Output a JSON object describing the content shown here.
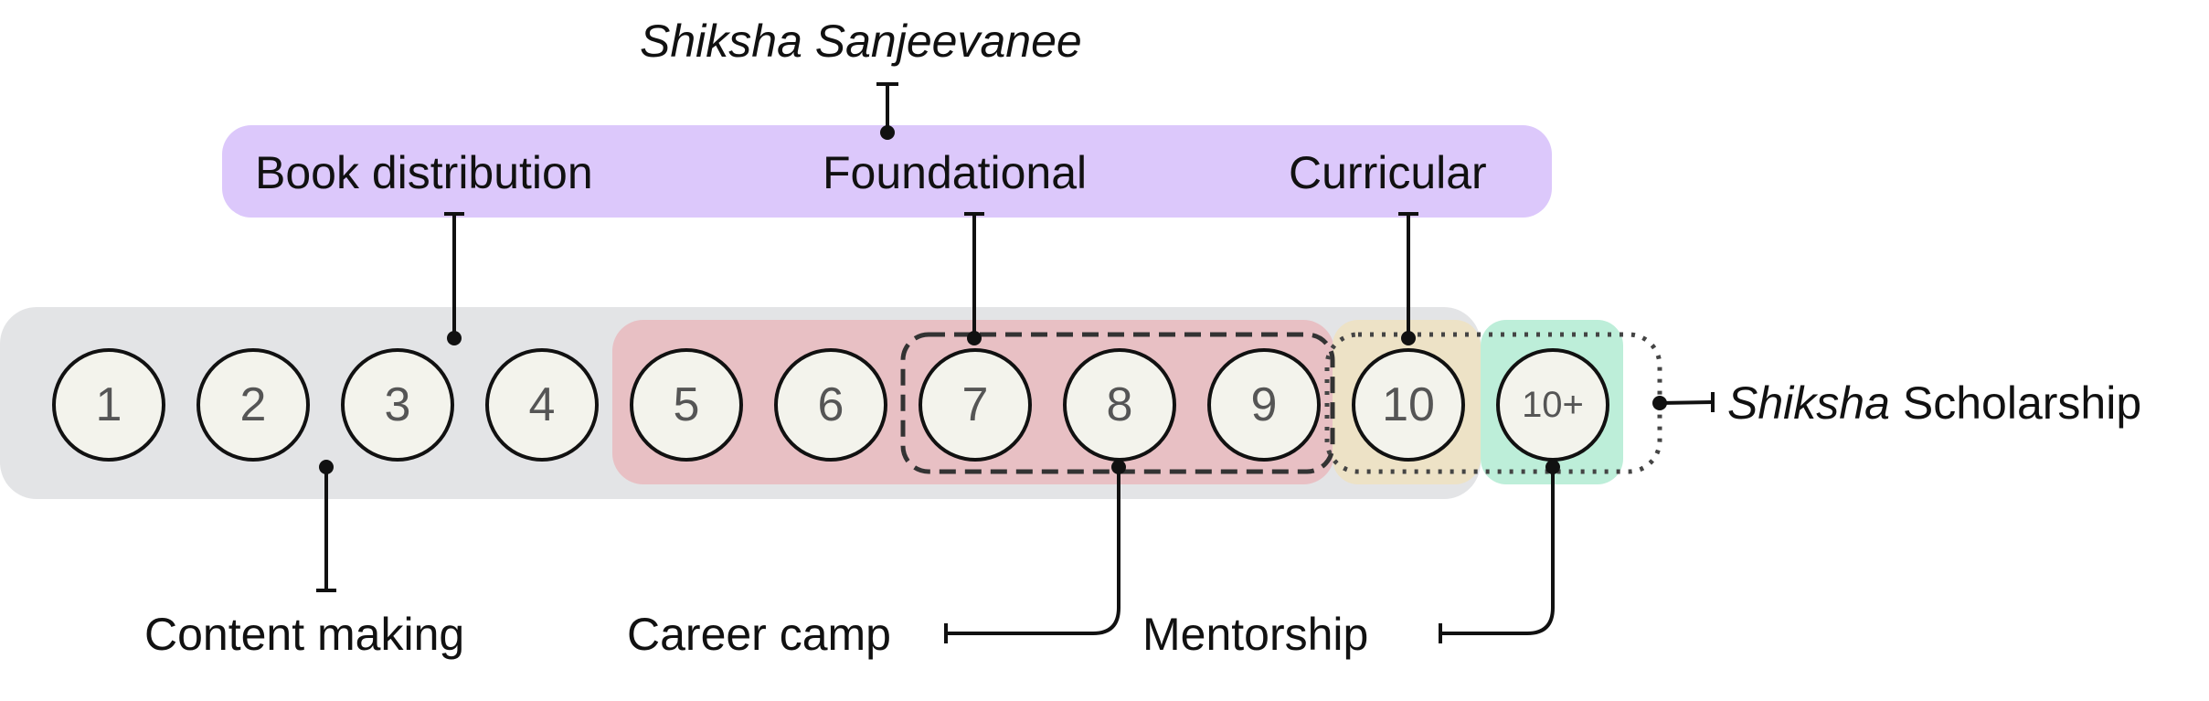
{
  "title": "Shiksha Sanjeevanee",
  "programs": {
    "book_distribution": "Book distribution",
    "foundational": "Foundational",
    "curricular": "Curricular"
  },
  "grades": [
    "1",
    "2",
    "3",
    "4",
    "5",
    "6",
    "7",
    "8",
    "9",
    "10",
    "10+"
  ],
  "labels": {
    "content_making": "Content making",
    "career_camp": "Career camp",
    "mentorship": "Mentorship",
    "scholarship_italic": "Shiksha",
    "scholarship_rest": "Scholarship"
  },
  "colors": {
    "sanjeevanee_band": "#dcc8fb",
    "content_band": "#e3e4e6",
    "foundational_band": "#e8c0c4",
    "curricular_band": "#ede2c6",
    "mentorship_band": "#bdeed9",
    "circle_fill": "#f3f3ec",
    "line": "#111111"
  }
}
